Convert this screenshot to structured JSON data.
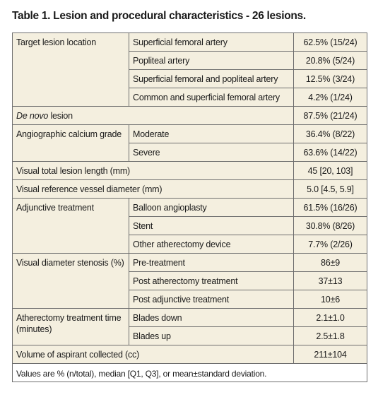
{
  "title": "Table 1. Lesion and procedural characteristics - 26 lesions.",
  "table": {
    "groups": [
      {
        "label": "Target lesion location",
        "items": [
          {
            "sub": "Superficial femoral artery",
            "value": "62.5% (15/24)"
          },
          {
            "sub": "Popliteal artery",
            "value": "20.8% (5/24)"
          },
          {
            "sub": "Superficial femoral and popliteal artery",
            "value": "12.5% (3/24)"
          },
          {
            "sub": "Common and superficial femoral artery",
            "value": "4.2% (1/24)"
          }
        ]
      },
      {
        "label_italic": "De novo",
        "label": "lesion",
        "value": "87.5% (21/24)"
      },
      {
        "label": "Angiographic calcium grade",
        "items": [
          {
            "sub": "Moderate",
            "value": "36.4% (8/22)"
          },
          {
            "sub": "Severe",
            "value": "63.6% (14/22)"
          }
        ]
      },
      {
        "label": "Visual total lesion length (mm)",
        "value": "45 [20, 103]"
      },
      {
        "label": "Visual reference vessel diameter (mm)",
        "value": "5.0 [4.5, 5.9]"
      },
      {
        "label": "Adjunctive treatment",
        "items": [
          {
            "sub": "Balloon angioplasty",
            "value": "61.5% (16/26)"
          },
          {
            "sub": "Stent",
            "value": "30.8% (8/26)"
          },
          {
            "sub": "Other atherectomy device",
            "value": "7.7% (2/26)"
          }
        ]
      },
      {
        "label": "Visual diameter stenosis (%)",
        "items": [
          {
            "sub": "Pre-treatment",
            "value": "86±9"
          },
          {
            "sub": "Post atherectomy treatment",
            "value": "37±13"
          },
          {
            "sub": "Post adjunctive treatment",
            "value": "10±6"
          }
        ]
      },
      {
        "label": "Atherectomy treatment time (minutes)",
        "items": [
          {
            "sub": "Blades down",
            "value": "2.1±1.0"
          },
          {
            "sub": "Blades up",
            "value": "2.5±1.8"
          }
        ]
      },
      {
        "label": "Volume of aspirant collected (cc)",
        "value": "211±104"
      }
    ],
    "footnote": "Values are % (n/total), median [Q1, Q3], or mean±standard deviation."
  }
}
